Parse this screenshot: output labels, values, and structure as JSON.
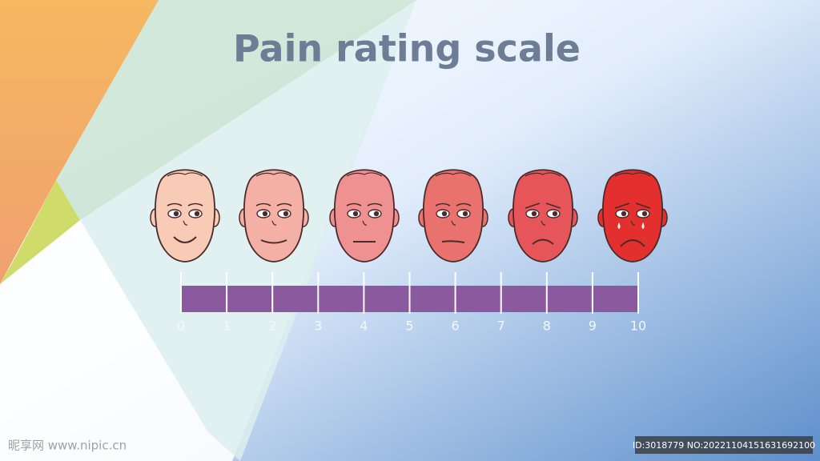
{
  "title": "Pain rating scale",
  "scale": {
    "ticks": [
      0,
      1,
      2,
      3,
      4,
      5,
      6,
      7,
      8,
      9,
      10
    ]
  },
  "watermark": {
    "site": "昵享网 www.nipic.cn",
    "id": "ID:3018779 NO:20221104151631692100"
  }
}
